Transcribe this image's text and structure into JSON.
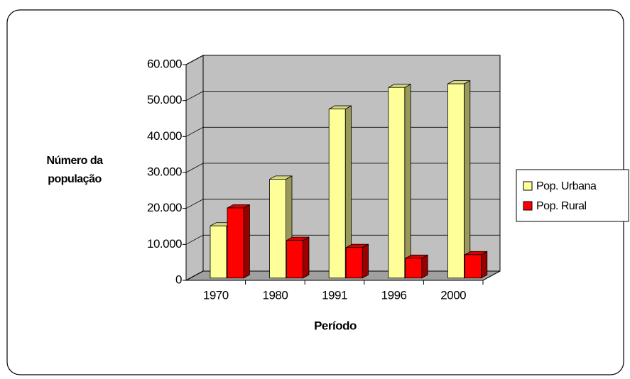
{
  "chart_data": {
    "type": "bar3d",
    "x_label": "Período",
    "y_label": "Número da população",
    "categories": [
      "1970",
      "1980",
      "1991",
      "1996",
      "2000"
    ],
    "series": [
      {
        "name": "Pop. Urbana",
        "color": "#ffff99",
        "values": [
          14500,
          27500,
          47000,
          53000,
          54000
        ]
      },
      {
        "name": "Pop. Rural",
        "color": "#ff0000",
        "values": [
          19500,
          10500,
          8500,
          5500,
          6500
        ]
      }
    ],
    "ylim": [
      0,
      60000
    ],
    "yticks": [
      0,
      {
        "value": 10000,
        "label": "10.000"
      },
      {
        "value": 20000,
        "label": "20.000"
      },
      {
        "value": 30000,
        "label": "30.000"
      },
      {
        "value": 40000,
        "label": "40.000"
      },
      {
        "value": 50000,
        "label": "50.000"
      },
      {
        "value": 60000,
        "label": "60.000"
      }
    ],
    "grid": true,
    "legend": "right"
  }
}
